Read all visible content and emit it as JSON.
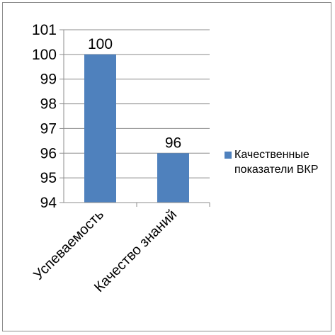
{
  "chart_data": {
    "type": "bar",
    "title": "",
    "xlabel": "",
    "ylabel": "",
    "categories": [
      "Успеваемость",
      "Качество знаний"
    ],
    "series": [
      {
        "name": "Качественные показатели ВКР",
        "values": [
          100,
          96
        ],
        "color": "#4f81bd"
      }
    ],
    "data_labels": [
      "100",
      "96"
    ],
    "ylim": [
      94,
      101
    ],
    "y_ticks": [
      "94",
      "95",
      "96",
      "97",
      "98",
      "99",
      "100",
      "101"
    ],
    "grid": true,
    "legend_position": "right"
  },
  "colors": {
    "bar": "#4f81bd",
    "gridline": "#8c8c8c",
    "border": "#8c8c8c"
  }
}
